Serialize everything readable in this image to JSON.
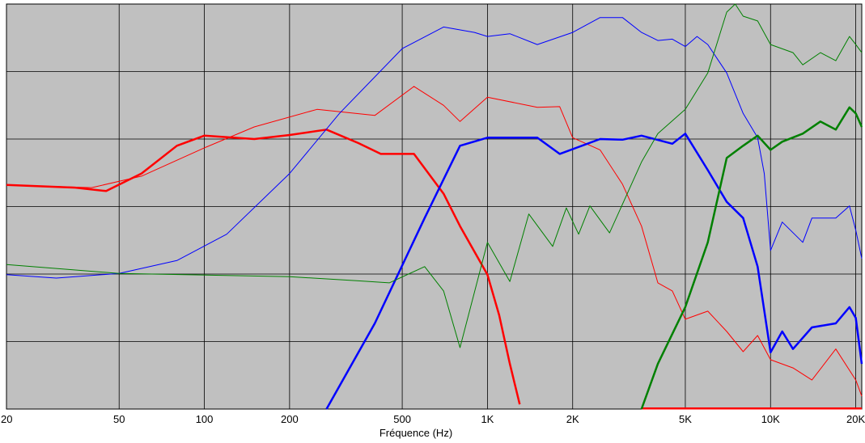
{
  "chart_data": {
    "type": "line",
    "x_label": "Fréquence (Hz)",
    "log_x": true,
    "grid": true,
    "background": "#c0c0c0",
    "xlim": [
      20,
      21000
    ],
    "xticks": [
      20,
      50,
      100,
      200,
      500,
      {
        "value": 1000,
        "label": "1K"
      },
      {
        "value": 2000,
        "label": "2K"
      },
      {
        "value": 5000,
        "label": "5K"
      },
      {
        "value": 10000,
        "label": "10K"
      },
      {
        "value": 20000,
        "label": "20K"
      }
    ],
    "ylim": [
      0,
      6
    ],
    "yticks": [
      1,
      2,
      3,
      4,
      5
    ],
    "series": [
      {
        "color": "#ff0000",
        "width": 1,
        "x": [
          20,
          40,
          60,
          100,
          150,
          250,
          400,
          550,
          700,
          800,
          1000,
          1500,
          1800,
          2000,
          2500,
          3000,
          3500,
          4000,
          4500,
          5000,
          6000,
          7000,
          8000,
          9000,
          10000,
          12000,
          14000,
          17000,
          20000,
          21000
        ],
        "values": [
          3.32,
          3.28,
          3.45,
          3.87,
          4.18,
          4.44,
          4.35,
          4.78,
          4.5,
          4.26,
          4.62,
          4.47,
          4.48,
          4.02,
          3.84,
          3.33,
          2.71,
          1.87,
          1.75,
          1.33,
          1.45,
          1.15,
          0.85,
          1.09,
          0.73,
          0.61,
          0.43,
          0.89,
          0.43,
          0.19
        ]
      },
      {
        "color": "#ff0000",
        "width": 2.5,
        "x": [
          20,
          35,
          45,
          60,
          80,
          100,
          150,
          200,
          270,
          350,
          420,
          550,
          700,
          800,
          1000,
          1100,
          1200,
          1300,
          2000,
          3500,
          21000
        ],
        "values": [
          3.32,
          3.28,
          3.23,
          3.49,
          3.9,
          4.05,
          4.0,
          4.06,
          4.14,
          3.94,
          3.78,
          3.78,
          3.19,
          2.71,
          1.99,
          1.39,
          0.67,
          0.07,
          null,
          0.01,
          0.01
        ]
      },
      {
        "color": "#0000ff",
        "width": 1,
        "x": [
          20,
          30,
          50,
          80,
          120,
          200,
          300,
          500,
          700,
          900,
          1000,
          1200,
          1500,
          2000,
          2500,
          3000,
          3500,
          4000,
          4500,
          5000,
          5500,
          6000,
          7000,
          8000,
          9000,
          9500,
          10000,
          11000,
          13000,
          14000,
          17000,
          19000,
          20000,
          21000
        ],
        "values": [
          1.99,
          1.94,
          2.01,
          2.2,
          2.59,
          3.49,
          4.38,
          5.34,
          5.66,
          5.58,
          5.52,
          5.56,
          5.4,
          5.58,
          5.8,
          5.8,
          5.58,
          5.46,
          5.48,
          5.37,
          5.52,
          5.4,
          4.98,
          4.38,
          4.02,
          3.49,
          2.35,
          2.77,
          2.47,
          2.83,
          2.83,
          3.01,
          2.65,
          2.23
        ]
      },
      {
        "color": "#0000ff",
        "width": 2.5,
        "x": [
          270,
          400,
          600,
          800,
          1000,
          1500,
          1800,
          2500,
          3000,
          3500,
          4500,
          5000,
          6000,
          7000,
          8000,
          9000,
          10000,
          11000,
          12000,
          14000,
          17000,
          19000,
          20000,
          21000
        ],
        "values": [
          0,
          1.27,
          2.83,
          3.9,
          4.02,
          4.02,
          3.78,
          4.0,
          3.99,
          4.05,
          3.93,
          4.08,
          3.54,
          3.07,
          2.83,
          2.11,
          0.84,
          1.15,
          0.89,
          1.21,
          1.27,
          1.51,
          1.35,
          0.67
        ]
      },
      {
        "color": "#008000",
        "width": 1,
        "x": [
          20,
          50,
          200,
          350,
          450,
          600,
          700,
          800,
          1000,
          1200,
          1400,
          1700,
          1900,
          2100,
          2300,
          2700,
          3500,
          4000,
          5000,
          6000,
          7000,
          7500,
          8000,
          9000,
          10000,
          12000,
          13000,
          15000,
          17000,
          19000,
          20000,
          21000
        ],
        "values": [
          2.14,
          2.01,
          1.96,
          1.9,
          1.87,
          2.11,
          1.75,
          0.91,
          2.47,
          1.89,
          2.89,
          2.41,
          2.98,
          2.59,
          3.01,
          2.61,
          3.66,
          4.08,
          4.44,
          4.98,
          5.88,
          6.0,
          5.82,
          5.75,
          5.4,
          5.28,
          5.1,
          5.28,
          5.16,
          5.52,
          5.4,
          5.28
        ]
      },
      {
        "color": "#008000",
        "width": 2.5,
        "x": [
          3500,
          4000,
          5000,
          6000,
          7000,
          8000,
          9000,
          10000,
          11000,
          13000,
          15000,
          17000,
          19000,
          20000,
          21000
        ],
        "values": [
          0,
          0.67,
          1.51,
          2.47,
          3.72,
          3.9,
          4.05,
          3.84,
          3.96,
          4.08,
          4.26,
          4.14,
          4.47,
          4.38,
          4.18
        ]
      }
    ]
  }
}
